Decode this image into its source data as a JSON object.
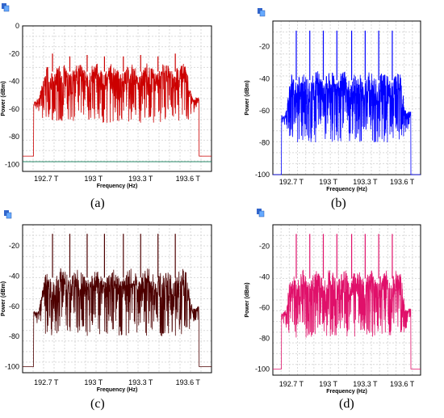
{
  "chart_data": [
    {
      "type": "line",
      "panel_label": "(a)",
      "color": "#cc0000",
      "xlabel": "Frequency (Hz)",
      "ylabel": "Power (dBm)",
      "xticks": [
        192.7,
        193.0,
        193.3,
        193.6
      ],
      "xtick_labels": [
        "192.7 T",
        "193 T",
        "193.3 T",
        "193.6 T"
      ],
      "yticks": [
        0,
        -20,
        -40,
        -60,
        -80,
        -100
      ],
      "ytick_labels": [
        "0",
        "-20",
        "-40",
        "-60",
        "-80",
        "-100"
      ],
      "xlim": [
        192.55,
        193.75
      ],
      "ylim": [
        -105,
        0
      ],
      "grid": true,
      "noise_floor": -94,
      "band": [
        192.62,
        193.67
      ],
      "carrier_peaks_dBm": [
        -20,
        -22,
        -21,
        -22,
        -22,
        -21,
        -22,
        -20
      ],
      "carrier_freqs_THz": [
        192.74,
        192.85,
        192.96,
        193.07,
        193.19,
        193.3,
        193.41,
        193.52
      ],
      "envelope_top": -27,
      "envelope_bottom": -70,
      "marker_line_dBm": -98
    },
    {
      "type": "line",
      "panel_label": "(b)",
      "color": "#0000ff",
      "xlabel": "Frequency (Hz)",
      "ylabel": "Power (dBm)",
      "xticks": [
        192.7,
        193.0,
        193.3,
        193.6
      ],
      "xtick_labels": [
        "192.7 T",
        "193 T",
        "193.3 T",
        "193.6 T"
      ],
      "yticks": [
        -20,
        -40,
        -60,
        -80,
        -100
      ],
      "ytick_labels": [
        "-20",
        "-40",
        "-60",
        "-80",
        "-100"
      ],
      "xlim": [
        192.55,
        193.75
      ],
      "ylim": [
        -100,
        -4
      ],
      "grid": true,
      "noise_floor": -100,
      "band": [
        192.62,
        193.67
      ],
      "carrier_peaks_dBm": [
        -10,
        -10,
        -10,
        -10,
        -10,
        -10,
        -10,
        -10
      ],
      "carrier_freqs_THz": [
        192.74,
        192.85,
        192.96,
        193.07,
        193.19,
        193.3,
        193.41,
        193.52
      ],
      "envelope_top": -35,
      "envelope_bottom": -80
    },
    {
      "type": "line",
      "panel_label": "(c)",
      "color": "#4d0000",
      "xlabel": "Frequency (Hz)",
      "ylabel": "Power (dBm)",
      "xticks": [
        192.7,
        193.0,
        193.3,
        193.6
      ],
      "xtick_labels": [
        "192.7 T",
        "193 T",
        "193.3 T",
        "193.6 T"
      ],
      "yticks": [
        -20,
        -40,
        -60,
        -80,
        -100
      ],
      "ytick_labels": [
        "-20",
        "-40",
        "-60",
        "-80",
        "-100"
      ],
      "xlim": [
        192.55,
        193.75
      ],
      "ylim": [
        -104,
        -6
      ],
      "grid": true,
      "noise_floor": -100,
      "band": [
        192.62,
        193.67
      ],
      "carrier_peaks_dBm": [
        -12,
        -12,
        -12,
        -12,
        -12,
        -12,
        -12,
        -12
      ],
      "carrier_freqs_THz": [
        192.74,
        192.85,
        192.96,
        193.07,
        193.19,
        193.3,
        193.41,
        193.52
      ],
      "envelope_top": -35,
      "envelope_bottom": -80
    },
    {
      "type": "line",
      "panel_label": "(d)",
      "color": "#e0106a",
      "xlabel": "Frequency (Hz)",
      "ylabel": "Power (dBm)",
      "xticks": [
        192.7,
        193.0,
        193.3,
        193.6
      ],
      "xtick_labels": [
        "192.7 T",
        "193 T",
        "193.3 T",
        "193.6 T"
      ],
      "yticks": [
        -20,
        -40,
        -60,
        -80,
        -100
      ],
      "ytick_labels": [
        "-20",
        "-40",
        "-60",
        "-80",
        "-100"
      ],
      "xlim": [
        192.55,
        193.75
      ],
      "ylim": [
        -104,
        -6
      ],
      "grid": true,
      "noise_floor": -100,
      "band": [
        192.62,
        193.67
      ],
      "carrier_peaks_dBm": [
        -12,
        -12,
        -12,
        -12,
        -12,
        -12,
        -12,
        -12
      ],
      "carrier_freqs_THz": [
        192.74,
        192.85,
        192.96,
        193.07,
        193.19,
        193.3,
        193.41,
        193.52
      ],
      "envelope_top": -35,
      "envelope_bottom": -80
    }
  ]
}
